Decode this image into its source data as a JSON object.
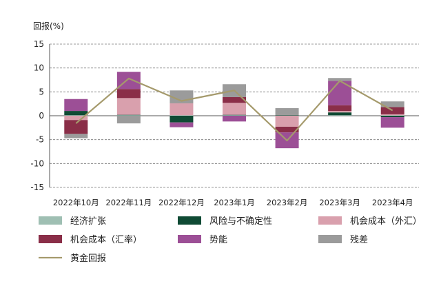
{
  "chart_data": {
    "type": "bar",
    "stacked": true,
    "ylabel": "回报(%)",
    "ylim": [
      -15,
      15
    ],
    "yticks": [
      15,
      10,
      5,
      0,
      -5,
      -10,
      -15
    ],
    "grid": "horizontal dashed",
    "legend_position": "bottom",
    "categories": [
      "2022年10月",
      "2022年11月",
      "2022年12月",
      "2023年1月",
      "2023年2月",
      "2023年3月",
      "2023年4月"
    ],
    "series": [
      {
        "name": "经济扩张",
        "color": "#9fbfb3",
        "values": [
          0.1,
          0.1,
          0.1,
          0.1,
          0.0,
          0.1,
          0.1
        ]
      },
      {
        "name": "风险与不确定性",
        "color": "#0f4a34",
        "values": [
          0.9,
          0.1,
          -1.4,
          0.1,
          0.1,
          0.6,
          -0.3
        ]
      },
      {
        "name": "机会成本（外汇）",
        "color": "#d9a0ad",
        "values": [
          -0.9,
          3.5,
          2.5,
          2.5,
          -2.3,
          0.3,
          0.2
        ]
      },
      {
        "name": "机会成本（汇率）",
        "color": "#8a2e48",
        "values": [
          -2.9,
          1.9,
          0.0,
          1.2,
          -1.2,
          1.2,
          1.5
        ]
      },
      {
        "name": "势能",
        "color": "#9c4f96",
        "values": [
          2.5,
          3.6,
          -1.0,
          -1.2,
          -3.3,
          5.1,
          -2.2
        ]
      },
      {
        "name": "残差",
        "color": "#9b9b9b",
        "values": [
          -0.9,
          -1.6,
          2.7,
          2.7,
          1.5,
          0.6,
          1.2
        ]
      }
    ],
    "line": {
      "name": "黄金回报",
      "color": "#a59a6c",
      "values": [
        -1.6,
        7.8,
        3.1,
        5.3,
        -5.2,
        7.3,
        1.1
      ]
    }
  }
}
